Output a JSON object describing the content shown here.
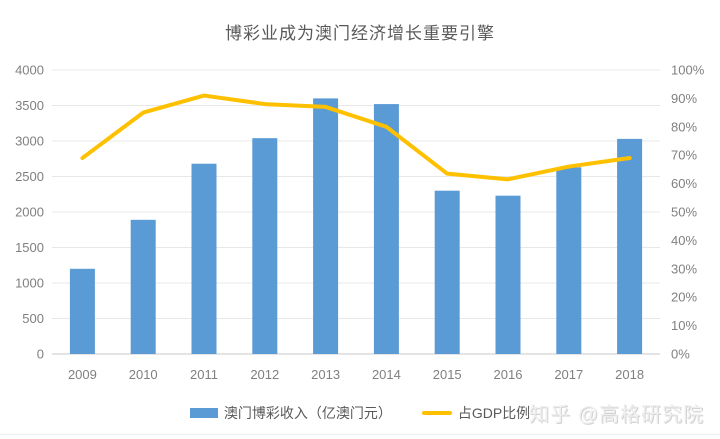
{
  "page": {
    "watermark": "知乎 @高格研究院"
  },
  "chart_data": {
    "type": "bar",
    "combo": "bar+line",
    "title": "博彩业成为澳门经济增长重要引擎",
    "categories": [
      "2009",
      "2010",
      "2011",
      "2012",
      "2013",
      "2014",
      "2015",
      "2016",
      "2017",
      "2018"
    ],
    "series": [
      {
        "name": "澳门博彩收入（亿澳门元）",
        "type": "bar",
        "axis": "left",
        "color": "#5B9BD5",
        "values": [
          1200,
          1890,
          2680,
          3040,
          3600,
          3520,
          2300,
          2230,
          2630,
          3030
        ]
      },
      {
        "name": "占GDP比例",
        "type": "line",
        "axis": "right",
        "color": "#FFC000",
        "values": [
          69,
          85,
          91,
          88,
          87,
          80,
          63.5,
          61.5,
          66,
          69
        ]
      }
    ],
    "left_axis": {
      "min": 0,
      "max": 4000,
      "step": 500,
      "tick_labels": [
        "0",
        "500",
        "1000",
        "1500",
        "2000",
        "2500",
        "3000",
        "3500",
        "4000"
      ]
    },
    "right_axis": {
      "min": 0,
      "max": 100,
      "step": 10,
      "tick_labels": [
        "0%",
        "10%",
        "20%",
        "30%",
        "40%",
        "50%",
        "60%",
        "70%",
        "80%",
        "90%",
        "100%"
      ]
    },
    "grid": true,
    "legend_position": "bottom",
    "colors": {
      "grid": "#e8e8e8",
      "baseline": "#c8c8c8",
      "tick_text": "#808080",
      "title_text": "#595959"
    }
  }
}
